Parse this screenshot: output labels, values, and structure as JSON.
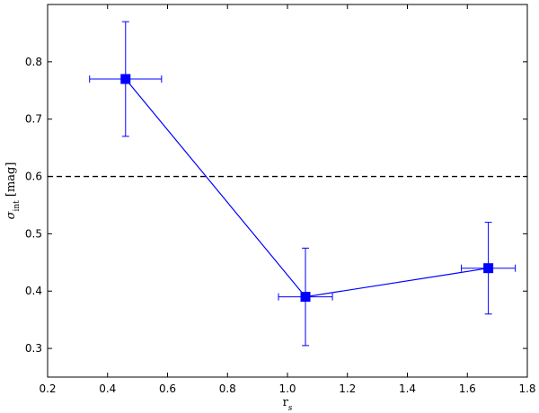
{
  "chart_data": {
    "type": "scatter",
    "title": "",
    "xlabel": {
      "main": "r",
      "sub": "s"
    },
    "ylabel": {
      "main": "σ",
      "sub": "int",
      "unit": " [mag]"
    },
    "xlim": [
      0.2,
      1.8
    ],
    "ylim": [
      0.25,
      0.9
    ],
    "xticks": [
      0.2,
      0.4,
      0.6,
      0.8,
      1.0,
      1.2,
      1.4,
      1.6,
      1.8
    ],
    "yticks": [
      0.3,
      0.4,
      0.5,
      0.6,
      0.7,
      0.8
    ],
    "xtick_labels": [
      "0.2",
      "0.4",
      "0.6",
      "0.8",
      "1.0",
      "1.2",
      "1.4",
      "1.6",
      "1.8"
    ],
    "ytick_labels": [
      "0.3",
      "0.4",
      "0.5",
      "0.6",
      "0.7",
      "0.8"
    ],
    "grid": false,
    "series": [
      {
        "color": "#0000ff",
        "marker": "square",
        "connected": true,
        "points": [
          {
            "x": 0.46,
            "y": 0.77,
            "xerr": 0.12,
            "yerr": 0.1
          },
          {
            "x": 1.06,
            "y": 0.39,
            "xerr": 0.09,
            "yerr_low": 0.085,
            "yerr_high": 0.085
          },
          {
            "x": 1.67,
            "y": 0.44,
            "xerr": 0.09,
            "yerr": 0.08
          }
        ]
      }
    ],
    "reference_line": {
      "y": 0.6,
      "style": "dashed",
      "color": "#000000"
    }
  }
}
